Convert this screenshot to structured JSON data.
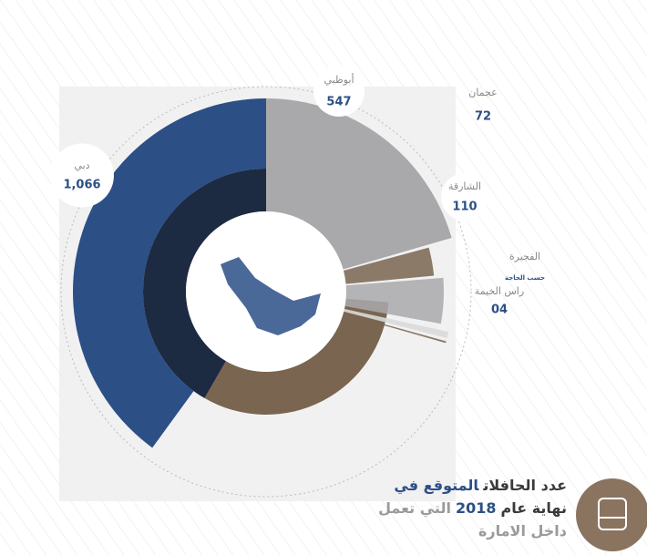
{
  "chart_data": {
    "type": "radial-bar",
    "categories": [
      "دبي",
      "أبوظبي",
      "عجمان",
      "الشارقة",
      "الفجيرة",
      "راس الخيمة"
    ],
    "values": [
      1066,
      547,
      72,
      110,
      null,
      4
    ],
    "value_labels": [
      "1,066",
      "547",
      "72",
      "110",
      "حسب الحاجة",
      "04"
    ],
    "colors": [
      "#2c4f86",
      "#a9a9ab",
      "#7a6551",
      "#a9a9ab",
      "#d9d9d9",
      "#7a6551"
    ],
    "title_lines": [
      [
        {
          "text": "عدد الحافلات",
          "color": "#3a3a3a"
        },
        {
          "text": "المتوقع في",
          "color": "#2c4f86"
        }
      ],
      [
        {
          "text": "نهاية عام",
          "color": "#3a3a3a"
        },
        {
          "text": "2018",
          "color": "#2c4f86"
        },
        {
          "text": "التي تعمل",
          "color": "#9a9a9a"
        }
      ],
      [
        {
          "text": "داخل الامارة",
          "color": "#9a9a9a"
        }
      ]
    ]
  }
}
